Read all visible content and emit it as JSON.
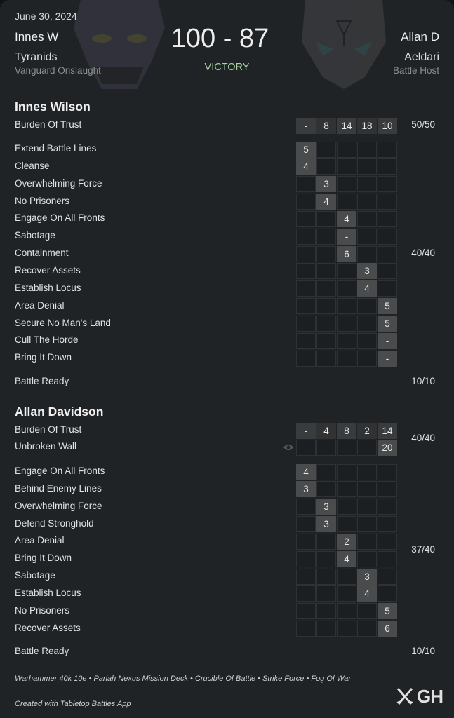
{
  "header": {
    "date": "June 30, 2024",
    "score": "100 - 87",
    "result": "VICTORY",
    "result_color": "#a7d3a0",
    "left": {
      "name": "Innes W",
      "faction": "Tyranids",
      "detachment": "Vanguard Onslaught",
      "art_icon": "tyranid-skull-art"
    },
    "right": {
      "name": "Allan D",
      "faction": "Aeldari",
      "detachment": "Battle Host",
      "art_icon": "aeldari-mask-art"
    }
  },
  "players": [
    {
      "name": "Innes Wilson",
      "primary": [
        {
          "label": "Burden Of Trust",
          "rounds": [
            "-",
            "8",
            "14",
            "18",
            "10"
          ],
          "hidden": false
        }
      ],
      "primary_total": "50/50",
      "secondaries": [
        {
          "label": "Extend Battle Lines",
          "round": 1,
          "value": "5"
        },
        {
          "label": "Cleanse",
          "round": 1,
          "value": "4"
        },
        {
          "label": "Overwhelming Force",
          "round": 2,
          "value": "3"
        },
        {
          "label": "No Prisoners",
          "round": 2,
          "value": "4"
        },
        {
          "label": "Engage On All Fronts",
          "round": 3,
          "value": "4"
        },
        {
          "label": "Sabotage",
          "round": 3,
          "value": "-"
        },
        {
          "label": "Containment",
          "round": 3,
          "value": "6"
        },
        {
          "label": "Recover Assets",
          "round": 4,
          "value": "3"
        },
        {
          "label": "Establish Locus",
          "round": 4,
          "value": "4"
        },
        {
          "label": "Area Denial",
          "round": 5,
          "value": "5"
        },
        {
          "label": "Secure No Man's Land",
          "round": 5,
          "value": "5"
        },
        {
          "label": "Cull The Horde",
          "round": 5,
          "value": "-"
        },
        {
          "label": "Bring It Down",
          "round": 5,
          "value": "-"
        }
      ],
      "secondary_total": "40/40",
      "battle_ready": {
        "label": "Battle Ready",
        "total": "10/10"
      }
    },
    {
      "name": "Allan Davidson",
      "primary": [
        {
          "label": "Burden Of Trust",
          "rounds": [
            "-",
            "4",
            "8",
            "2",
            "14"
          ],
          "hidden": false
        },
        {
          "label": "Unbroken Wall",
          "rounds": [
            "",
            "",
            "",
            "",
            "20"
          ],
          "hidden": true,
          "icon": "eye-icon"
        }
      ],
      "primary_total": "40/40",
      "secondaries": [
        {
          "label": "Engage On All Fronts",
          "round": 1,
          "value": "4"
        },
        {
          "label": "Behind Enemy Lines",
          "round": 1,
          "value": "3"
        },
        {
          "label": "Overwhelming Force",
          "round": 2,
          "value": "3"
        },
        {
          "label": "Defend Stronghold",
          "round": 2,
          "value": "3"
        },
        {
          "label": "Area Denial",
          "round": 3,
          "value": "2"
        },
        {
          "label": "Bring It Down",
          "round": 3,
          "value": "4"
        },
        {
          "label": "Sabotage",
          "round": 4,
          "value": "3"
        },
        {
          "label": "Establish Locus",
          "round": 4,
          "value": "4"
        },
        {
          "label": "No Prisoners",
          "round": 5,
          "value": "5"
        },
        {
          "label": "Recover Assets",
          "round": 5,
          "value": "6"
        }
      ],
      "secondary_total": "37/40",
      "battle_ready": {
        "label": "Battle Ready",
        "total": "10/10"
      }
    }
  ],
  "footer": {
    "game_info": "Warhammer 40k 10e • Pariah Nexus Mission Deck • Crucible Of Battle • Strike Force • Fog Of War",
    "credit": "Created with Tabletop Battles App",
    "logo_text": "GH",
    "logo_icon": "crossed-swords-icon"
  }
}
